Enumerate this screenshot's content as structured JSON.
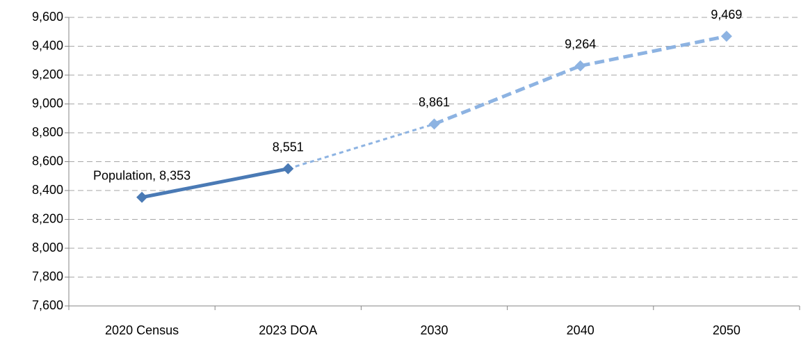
{
  "chart_data": {
    "type": "line",
    "categories": [
      "2020 Census",
      "2023 DOA",
      "2030",
      "2040",
      "2050"
    ],
    "values": [
      8353,
      8551,
      8861,
      9264,
      9469
    ],
    "value_labels": [
      "Population, 8,353",
      "8,551",
      "8,861",
      "9,264",
      "9,469"
    ],
    "marker_colors": [
      "#4a7ab5",
      "#4a7ab5",
      "#8db3e2",
      "#8db3e2",
      "#8db3e2"
    ],
    "segment_colors": [
      "#4a7ab5",
      "#8db3e2",
      "#8db3e2",
      "#8db3e2"
    ],
    "segment_dash": [
      "solid",
      "short-dash",
      "long-dash",
      "long-dash"
    ],
    "ylim": [
      7600,
      9600
    ],
    "yticks": [
      {
        "value": 7600,
        "label": "7,600"
      },
      {
        "value": 7800,
        "label": "7,800"
      },
      {
        "value": 8000,
        "label": "8,000"
      },
      {
        "value": 8200,
        "label": "8,200"
      },
      {
        "value": 8400,
        "label": "8,400"
      },
      {
        "value": 8600,
        "label": "8,600"
      },
      {
        "value": 8800,
        "label": "8,800"
      },
      {
        "value": 9000,
        "label": "9,000"
      },
      {
        "value": 9200,
        "label": "9,200"
      },
      {
        "value": 9400,
        "label": "9,400"
      },
      {
        "value": 9600,
        "label": "9,600"
      }
    ],
    "grid": true
  }
}
